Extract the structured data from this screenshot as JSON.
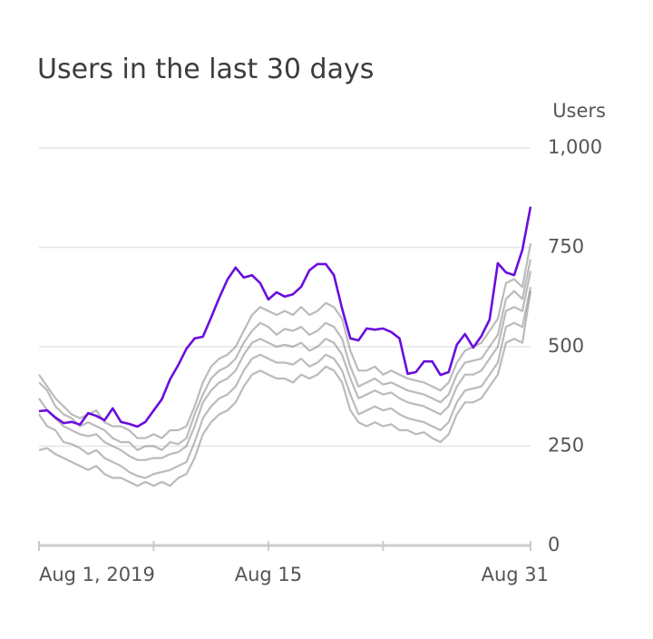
{
  "chart_data": {
    "type": "line",
    "title": "Users in the last 30 days",
    "y_label": "Users",
    "x": [
      1,
      1.5,
      2,
      2.5,
      3,
      3.5,
      4,
      4.5,
      5,
      5.5,
      6,
      6.5,
      7,
      7.5,
      8,
      8.5,
      9,
      9.5,
      10,
      10.5,
      11,
      11.5,
      12,
      12.5,
      13,
      13.5,
      14,
      14.5,
      15,
      15.5,
      16,
      16.5,
      17,
      17.5,
      18,
      18.5,
      19,
      19.5,
      20,
      20.5,
      21,
      21.5,
      22,
      22.5,
      23,
      23.5,
      24,
      24.5,
      25,
      25.5,
      26,
      26.5,
      27,
      27.5,
      28,
      28.5,
      29,
      29.5,
      30,
      30.5,
      31
    ],
    "xlim": [
      1,
      31
    ],
    "xticks": [
      {
        "value": 1,
        "label": "Aug 1, 2019"
      },
      {
        "value": 15,
        "label": "Aug 15"
      },
      {
        "value": 31,
        "label": "Aug 31"
      }
    ],
    "xminor_ticks": [
      8,
      22
    ],
    "ylim": [
      0,
      1000
    ],
    "yticks": [
      0,
      250,
      500,
      750,
      {
        "value": 1000,
        "label": "1,000"
      }
    ],
    "grid": true,
    "series": [
      {
        "color": "#777777",
        "values": [
          370,
          340,
          320,
          300,
          290,
          280,
          275,
          280,
          260,
          250,
          240,
          225,
          215,
          215,
          220,
          220,
          230,
          235,
          250,
          300,
          360,
          390,
          410,
          420,
          440,
          480,
          510,
          520,
          510,
          500,
          505,
          500,
          510,
          490,
          500,
          520,
          510,
          480,
          420,
          370,
          380,
          390,
          380,
          385,
          370,
          360,
          355,
          350,
          340,
          330,
          350,
          400,
          430,
          430,
          440,
          470,
          500,
          590,
          600,
          590,
          690
        ]
      },
      {
        "color": "#777777",
        "values": [
          410,
          390,
          350,
          330,
          320,
          300,
          310,
          300,
          290,
          270,
          260,
          260,
          240,
          250,
          250,
          240,
          260,
          255,
          270,
          330,
          380,
          420,
          440,
          450,
          470,
          510,
          540,
          560,
          550,
          530,
          545,
          540,
          550,
          530,
          540,
          560,
          550,
          520,
          450,
          400,
          410,
          420,
          405,
          410,
          400,
          390,
          385,
          380,
          370,
          360,
          380,
          430,
          460,
          465,
          470,
          500,
          530,
          620,
          640,
          620,
          720
        ]
      },
      {
        "color": "#777777",
        "values": [
          330,
          300,
          290,
          260,
          255,
          245,
          230,
          240,
          220,
          210,
          200,
          185,
          175,
          170,
          180,
          185,
          190,
          200,
          210,
          260,
          320,
          350,
          370,
          380,
          400,
          440,
          470,
          480,
          470,
          460,
          460,
          455,
          470,
          450,
          460,
          480,
          470,
          440,
          380,
          330,
          340,
          350,
          340,
          345,
          330,
          320,
          315,
          310,
          300,
          290,
          310,
          360,
          390,
          395,
          400,
          430,
          460,
          550,
          560,
          550,
          650
        ]
      },
      {
        "color": "#777777",
        "values": [
          430,
          400,
          370,
          350,
          330,
          320,
          330,
          340,
          310,
          300,
          300,
          290,
          270,
          270,
          280,
          270,
          290,
          290,
          300,
          350,
          410,
          450,
          470,
          480,
          500,
          540,
          580,
          600,
          590,
          580,
          590,
          580,
          600,
          580,
          590,
          610,
          600,
          570,
          490,
          440,
          440,
          450,
          430,
          440,
          430,
          420,
          415,
          410,
          400,
          390,
          410,
          460,
          490,
          500,
          510,
          540,
          570,
          660,
          670,
          650,
          760
        ]
      },
      {
        "color": "#777777",
        "values": [
          240,
          245,
          230,
          220,
          210,
          200,
          190,
          200,
          180,
          170,
          170,
          160,
          150,
          160,
          150,
          160,
          150,
          170,
          180,
          220,
          280,
          310,
          330,
          340,
          360,
          400,
          430,
          440,
          430,
          420,
          420,
          410,
          430,
          420,
          430,
          450,
          440,
          410,
          340,
          310,
          300,
          310,
          300,
          305,
          290,
          290,
          280,
          285,
          270,
          260,
          280,
          330,
          360,
          360,
          370,
          400,
          430,
          510,
          520,
          510,
          640
        ]
      },
      {
        "color": "#6a0dde",
        "values": [
          338,
          340,
          322,
          308,
          311,
          304,
          333,
          326,
          315,
          345,
          311,
          306,
          299,
          311,
          340,
          368,
          418,
          454,
          495,
          521,
          525,
          573,
          623,
          669,
          699,
          674,
          680,
          660,
          619,
          637,
          626,
          632,
          651,
          692,
          708,
          708,
          680,
          596,
          521,
          516,
          546,
          543,
          546,
          537,
          521,
          432,
          436,
          463,
          463,
          429,
          436,
          505,
          532,
          498,
          527,
          568,
          710,
          687,
          680,
          744,
          852
        ]
      }
    ]
  }
}
